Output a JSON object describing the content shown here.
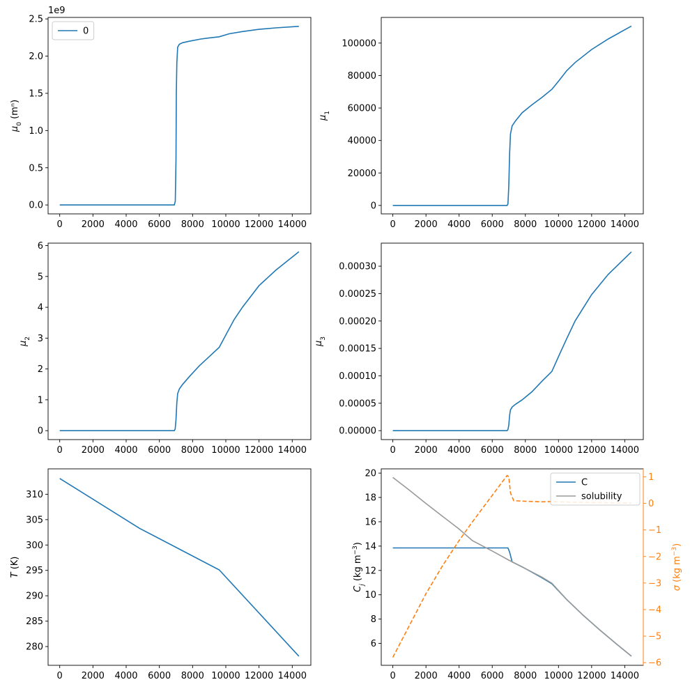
{
  "colors": {
    "blue": "#1f77b4",
    "orange": "#ff7f0e",
    "gray": "#999999",
    "dark": "#1a4a70"
  },
  "chart_data": [
    {
      "type": "line",
      "ylabel": "μ₀ (mⁿ)",
      "offset_text": "1e9",
      "xlim": [
        -700,
        15120
      ],
      "ylim": [
        -120000000.0,
        2520000000.0
      ],
      "xticks": [
        0,
        2000,
        4000,
        6000,
        8000,
        10000,
        12000,
        14000
      ],
      "yticks": [
        0,
        500000000.0,
        1000000000.0,
        1500000000.0,
        2000000000.0,
        2500000000.0
      ],
      "ytick_labels": [
        "0.0",
        "0.5",
        "1.0",
        "1.5",
        "2.0",
        "2.5"
      ],
      "legend": {
        "placement": "upper left",
        "entries": [
          "0"
        ]
      },
      "series": [
        {
          "name": "0",
          "color": "#1f77b4",
          "x": [
            0,
            6900,
            6960,
            7000,
            7020,
            7050,
            7100,
            7200,
            7400,
            7800,
            8500,
            9000,
            9600,
            10200,
            11000,
            12000,
            13000,
            14400
          ],
          "y": [
            0,
            0,
            50000000.0,
            600000000.0,
            1500000000.0,
            1900000000.0,
            2120000000.0,
            2160000000.0,
            2180000000.0,
            2200000000.0,
            2230000000.0,
            2245000000.0,
            2260000000.0,
            2300000000.0,
            2330000000.0,
            2360000000.0,
            2380000000.0,
            2400000000.0
          ]
        }
      ]
    },
    {
      "type": "line",
      "ylabel": "μ₁",
      "xlim": [
        -700,
        15120
      ],
      "ylim": [
        -5200,
        115800
      ],
      "xticks": [
        0,
        2000,
        4000,
        6000,
        8000,
        10000,
        12000,
        14000
      ],
      "yticks": [
        0,
        20000,
        40000,
        60000,
        80000,
        100000
      ],
      "ytick_labels": [
        "0",
        "20000",
        "40000",
        "60000",
        "80000",
        "100000"
      ],
      "series": [
        {
          "color": "#1f77b4",
          "x": [
            0,
            6900,
            6950,
            7000,
            7050,
            7100,
            7200,
            7400,
            7800,
            8400,
            9000,
            9600,
            10000,
            10500,
            11000,
            12000,
            13000,
            14400
          ],
          "y": [
            0,
            0,
            1000,
            12000,
            32000,
            44000,
            49000,
            52000,
            57000,
            62000,
            66500,
            71500,
            76500,
            83000,
            88000,
            96000,
            102500,
            110500
          ]
        }
      ]
    },
    {
      "type": "line",
      "ylabel": "μ₂",
      "xlim": [
        -700,
        15120
      ],
      "ylim": [
        -0.29,
        6.08
      ],
      "xticks": [
        0,
        2000,
        4000,
        6000,
        8000,
        10000,
        12000,
        14000
      ],
      "yticks": [
        0,
        1,
        2,
        3,
        4,
        5,
        6
      ],
      "ytick_labels": [
        "0",
        "1",
        "2",
        "3",
        "4",
        "5",
        "6"
      ],
      "series": [
        {
          "color": "#1f77b4",
          "x": [
            0,
            6900,
            6950,
            7000,
            7050,
            7100,
            7200,
            7400,
            7800,
            8400,
            9000,
            9600,
            10000,
            10500,
            11000,
            12000,
            13000,
            14400
          ],
          "y": [
            0,
            0,
            0.05,
            0.35,
            0.9,
            1.2,
            1.35,
            1.5,
            1.75,
            2.1,
            2.4,
            2.7,
            3.1,
            3.6,
            4.0,
            4.7,
            5.2,
            5.8
          ]
        }
      ]
    },
    {
      "type": "line",
      "ylabel": "μ₃",
      "xlim": [
        -700,
        15120
      ],
      "ylim": [
        -1.63e-05,
        0.000342
      ],
      "xticks": [
        0,
        2000,
        4000,
        6000,
        8000,
        10000,
        12000,
        14000
      ],
      "yticks": [
        0,
        5e-05,
        0.0001,
        0.00015,
        0.0002,
        0.00025,
        0.0003
      ],
      "ytick_labels": [
        "0.00000",
        "0.00005",
        "0.00010",
        "0.00015",
        "0.00020",
        "0.00025",
        "0.00030"
      ],
      "series": [
        {
          "color": "#1f77b4",
          "x": [
            0,
            6900,
            6950,
            7000,
            7050,
            7100,
            7200,
            7400,
            7800,
            8400,
            9000,
            9600,
            10000,
            10500,
            11000,
            12000,
            13000,
            14400
          ],
          "y": [
            0,
            0,
            2e-06,
            1e-05,
            2.8e-05,
            3.8e-05,
            4.3e-05,
            4.8e-05,
            5.6e-05,
            7.1e-05,
            9e-05,
            0.000108,
            0.000135,
            0.000168,
            0.0002,
            0.000248,
            0.000285,
            0.000326
          ]
        }
      ]
    },
    {
      "type": "line",
      "ylabel": "T (K)",
      "xlim": [
        -700,
        15120
      ],
      "ylim": [
        276.3,
        315.0
      ],
      "xticks": [
        0,
        2000,
        4000,
        6000,
        8000,
        10000,
        12000,
        14000
      ],
      "yticks": [
        280,
        285,
        290,
        295,
        300,
        305,
        310
      ],
      "ytick_labels": [
        "280",
        "285",
        "290",
        "295",
        "300",
        "305",
        "310"
      ],
      "series": [
        {
          "color": "#1f77b4",
          "x": [
            0,
            4800,
            9600,
            14400
          ],
          "y": [
            313.1,
            303.3,
            295.1,
            278.1
          ]
        }
      ]
    },
    {
      "type": "line",
      "ylabel": "Cⱼ (kg m⁻³)",
      "y2label": "σ (kg m⁻³)",
      "xlim": [
        -700,
        15120
      ],
      "ylim": [
        4.2,
        20.35
      ],
      "y2lim": [
        -6.1,
        1.3
      ],
      "xticks": [
        0,
        2000,
        4000,
        6000,
        8000,
        10000,
        12000,
        14000
      ],
      "yticks": [
        6,
        8,
        10,
        12,
        14,
        16,
        18,
        20
      ],
      "ytick_labels": [
        "6",
        "8",
        "10",
        "12",
        "14",
        "16",
        "18",
        "20"
      ],
      "y2ticks": [
        -6,
        -5,
        -4,
        -3,
        -2,
        -1,
        0,
        1
      ],
      "y2tick_labels": [
        "−6",
        "−5",
        "−4",
        "−3",
        "−2",
        "−1",
        "0",
        "1"
      ],
      "legend": {
        "placement": "upper right",
        "entries": [
          "C",
          "solubility"
        ]
      },
      "series": [
        {
          "name": "C",
          "color": "#1f77b4",
          "axis": "left",
          "x": [
            0,
            6950,
            7050,
            7200,
            7800,
            8400,
            9000,
            9600,
            10500,
            11500,
            12500,
            13500,
            14400
          ],
          "y": [
            13.85,
            13.85,
            13.5,
            12.7,
            12.3,
            11.85,
            11.4,
            10.9,
            9.6,
            8.3,
            7.1,
            5.95,
            4.95
          ]
        },
        {
          "name": "solubility",
          "color": "#999999",
          "axis": "left",
          "x": [
            0,
            1000,
            2000,
            3000,
            4000,
            4800,
            6000,
            7000,
            8000,
            9000,
            9600,
            10500,
            11500,
            12500,
            13500,
            14400
          ],
          "y": [
            19.65,
            18.6,
            17.5,
            16.45,
            15.4,
            14.45,
            13.6,
            12.85,
            12.15,
            11.45,
            10.95,
            9.6,
            8.3,
            7.1,
            5.95,
            4.95
          ]
        },
        {
          "name": "σ",
          "color": "#ff7f0e",
          "axis": "right",
          "dashed": true,
          "x": [
            0,
            1000,
            2000,
            3000,
            4000,
            4800,
            6000,
            6900,
            7000,
            7100,
            7300,
            8000,
            9000,
            9600,
            10500,
            12000,
            13500,
            14400
          ],
          "y": [
            -5.8,
            -4.6,
            -3.4,
            -2.35,
            -1.4,
            -0.7,
            0.3,
            1.05,
            1.0,
            0.4,
            0.1,
            0.08,
            0.06,
            0.07,
            0.05,
            0.03,
            0.02,
            0.01
          ]
        }
      ]
    }
  ]
}
